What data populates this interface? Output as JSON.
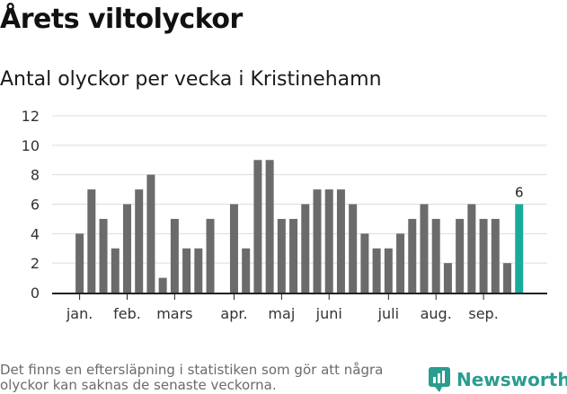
{
  "title": "Årets viltolyckor",
  "subtitle": "Antal olyckor per vecka i Kristinehamn",
  "note": "Det finns en eftersläpning i statistiken som gör att några olyckor kan saknas de senaste veckorna.",
  "brand": {
    "name": "Newsworthy"
  },
  "colors": {
    "bar": "#6b6b6b",
    "highlight": "#1aaa9b",
    "grid": "#dddddd",
    "axis": "#222222",
    "brand": "#2a9d8f"
  },
  "chart_data": {
    "type": "bar",
    "title": "Antal olyckor per vecka i Kristinehamn",
    "xlabel": "",
    "ylabel": "",
    "ylim": [
      0,
      12
    ],
    "yticks": [
      0,
      2,
      4,
      6,
      8,
      10,
      12
    ],
    "grid": true,
    "values": [
      4,
      7,
      5,
      3,
      6,
      7,
      8,
      1,
      5,
      3,
      3,
      5,
      null,
      6,
      3,
      9,
      9,
      5,
      5,
      6,
      7,
      7,
      7,
      6,
      4,
      3,
      3,
      4,
      5,
      6,
      5,
      2,
      5,
      6,
      5,
      5,
      2,
      6
    ],
    "month_labels": [
      {
        "label": "jan.",
        "week": 1
      },
      {
        "label": "feb.",
        "week": 5
      },
      {
        "label": "mars",
        "week": 9
      },
      {
        "label": "apr.",
        "week": 14
      },
      {
        "label": "maj",
        "week": 18
      },
      {
        "label": "juni",
        "week": 22
      },
      {
        "label": "juli",
        "week": 27
      },
      {
        "label": "aug.",
        "week": 31
      },
      {
        "label": "sep.",
        "week": 35
      }
    ],
    "highlight": {
      "week": 38,
      "value": 6,
      "label": "6"
    }
  }
}
